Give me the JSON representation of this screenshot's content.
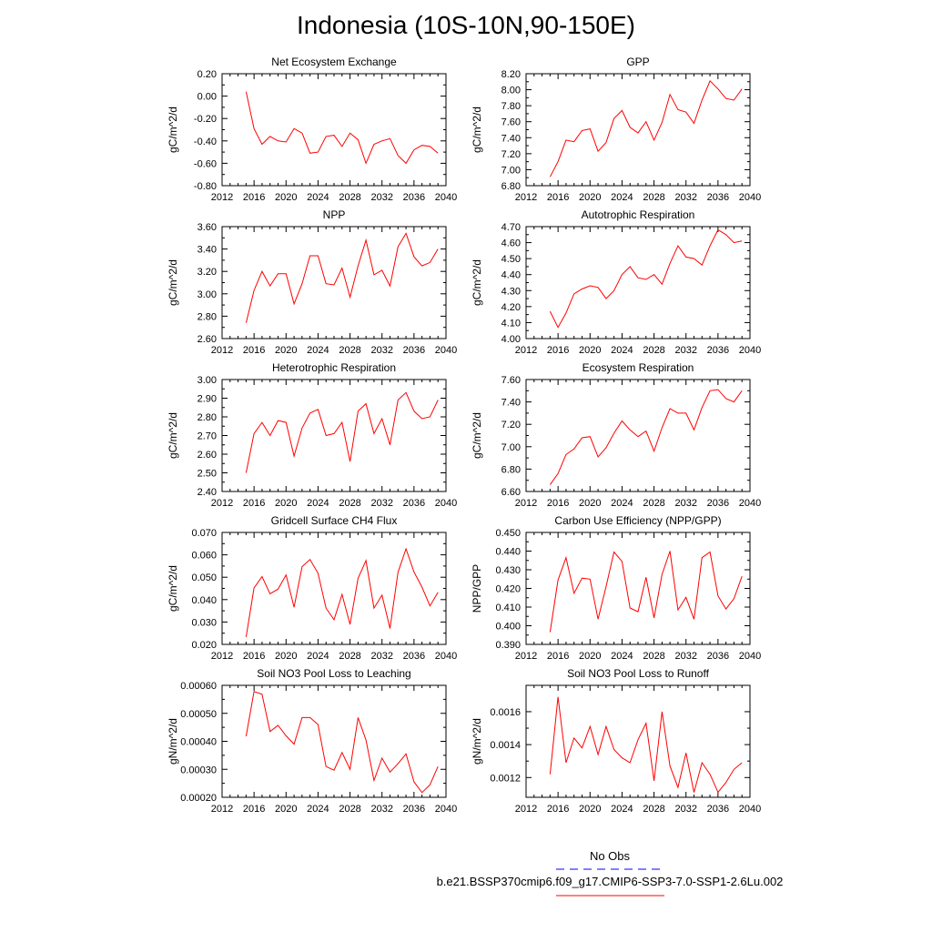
{
  "page_title": "Indonesia (10S-10N,90-150E)",
  "legend": {
    "obs_label": "No Obs",
    "model_label": "b.e21.BSSP370cmip6.f09_g17.CMIP6-SSP3-7.0-SSP1-2.6Lu.002",
    "obs_color": "#0000ff",
    "model_color": "#ff0000"
  },
  "chart_data": [
    {
      "type": "line",
      "title": "Net Ecosystem Exchange",
      "xlabel": "",
      "ylabel": "gC/m^2/d",
      "xlim": [
        2012,
        2040
      ],
      "ylim": [
        -0.8,
        0.2
      ],
      "xticks": [
        "2012",
        "2016",
        "2020",
        "2024",
        "2028",
        "2032",
        "2036",
        "2040"
      ],
      "yticks": [
        "-0.80",
        "-0.60",
        "-0.40",
        "-0.20",
        "0.00",
        "0.20"
      ],
      "x": [
        2015,
        2016,
        2017,
        2018,
        2019,
        2020,
        2021,
        2022,
        2023,
        2024,
        2025,
        2026,
        2027,
        2028,
        2029,
        2030,
        2031,
        2032,
        2033,
        2034,
        2035,
        2036,
        2037,
        2038,
        2039
      ],
      "values": [
        0.04,
        -0.29,
        -0.43,
        -0.36,
        -0.4,
        -0.41,
        -0.29,
        -0.33,
        -0.51,
        -0.5,
        -0.36,
        -0.35,
        -0.45,
        -0.33,
        -0.39,
        -0.6,
        -0.43,
        -0.4,
        -0.38,
        -0.53,
        -0.6,
        -0.48,
        -0.44,
        -0.45,
        -0.51
      ],
      "grid": false
    },
    {
      "type": "line",
      "title": "GPP",
      "xlabel": "",
      "ylabel": "gC/m^2/d",
      "xlim": [
        2012,
        2040
      ],
      "ylim": [
        6.8,
        8.2
      ],
      "xticks": [
        "2012",
        "2016",
        "2020",
        "2024",
        "2028",
        "2032",
        "2036",
        "2040"
      ],
      "yticks": [
        "6.80",
        "7.00",
        "7.20",
        "7.40",
        "7.60",
        "7.80",
        "8.00",
        "8.20"
      ],
      "x": [
        2015,
        2016,
        2017,
        2018,
        2019,
        2020,
        2021,
        2022,
        2023,
        2024,
        2025,
        2026,
        2027,
        2028,
        2029,
        2030,
        2031,
        2032,
        2033,
        2034,
        2035,
        2036,
        2037,
        2038,
        2039
      ],
      "values": [
        6.91,
        7.1,
        7.37,
        7.35,
        7.49,
        7.51,
        7.23,
        7.34,
        7.64,
        7.74,
        7.53,
        7.46,
        7.6,
        7.37,
        7.59,
        7.94,
        7.75,
        7.72,
        7.58,
        7.87,
        8.11,
        8.01,
        7.89,
        7.87,
        8.01
      ],
      "grid": false
    },
    {
      "type": "line",
      "title": "NPP",
      "xlabel": "",
      "ylabel": "gC/m^2/d",
      "xlim": [
        2012,
        2040
      ],
      "ylim": [
        2.6,
        3.6
      ],
      "xticks": [
        "2012",
        "2016",
        "2020",
        "2024",
        "2028",
        "2032",
        "2036",
        "2040"
      ],
      "yticks": [
        "2.60",
        "2.80",
        "3.00",
        "3.20",
        "3.40",
        "3.60"
      ],
      "x": [
        2015,
        2016,
        2017,
        2018,
        2019,
        2020,
        2021,
        2022,
        2023,
        2024,
        2025,
        2026,
        2027,
        2028,
        2029,
        2030,
        2031,
        2032,
        2033,
        2034,
        2035,
        2036,
        2037,
        2038,
        2039
      ],
      "values": [
        2.74,
        3.03,
        3.2,
        3.07,
        3.18,
        3.18,
        2.91,
        3.09,
        3.34,
        3.34,
        3.09,
        3.08,
        3.23,
        2.97,
        3.25,
        3.48,
        3.17,
        3.21,
        3.07,
        3.42,
        3.54,
        3.33,
        3.25,
        3.28,
        3.4
      ],
      "grid": false
    },
    {
      "type": "line",
      "title": "Autotrophic Respiration",
      "xlabel": "",
      "ylabel": "gC/m^2/d",
      "xlim": [
        2012,
        2040
      ],
      "ylim": [
        4.0,
        4.7
      ],
      "xticks": [
        "2012",
        "2016",
        "2020",
        "2024",
        "2028",
        "2032",
        "2036",
        "2040"
      ],
      "yticks": [
        "4.00",
        "4.10",
        "4.20",
        "4.30",
        "4.40",
        "4.50",
        "4.60",
        "4.70"
      ],
      "x": [
        2015,
        2016,
        2017,
        2018,
        2019,
        2020,
        2021,
        2022,
        2023,
        2024,
        2025,
        2026,
        2027,
        2028,
        2029,
        2030,
        2031,
        2032,
        2033,
        2034,
        2035,
        2036,
        2037,
        2038,
        2039
      ],
      "values": [
        4.17,
        4.07,
        4.16,
        4.28,
        4.31,
        4.33,
        4.32,
        4.25,
        4.3,
        4.4,
        4.45,
        4.38,
        4.37,
        4.4,
        4.34,
        4.47,
        4.58,
        4.51,
        4.5,
        4.46,
        4.58,
        4.68,
        4.65,
        4.6,
        4.61
      ],
      "grid": false
    },
    {
      "type": "line",
      "title": "Heterotrophic Respiration",
      "xlabel": "",
      "ylabel": "gC/m^2/d",
      "xlim": [
        2012,
        2040
      ],
      "ylim": [
        2.4,
        3.0
      ],
      "xticks": [
        "2012",
        "2016",
        "2020",
        "2024",
        "2028",
        "2032",
        "2036",
        "2040"
      ],
      "yticks": [
        "2.40",
        "2.50",
        "2.60",
        "2.70",
        "2.80",
        "2.90",
        "3.00"
      ],
      "x": [
        2015,
        2016,
        2017,
        2018,
        2019,
        2020,
        2021,
        2022,
        2023,
        2024,
        2025,
        2026,
        2027,
        2028,
        2029,
        2030,
        2031,
        2032,
        2033,
        2034,
        2035,
        2036,
        2037,
        2038,
        2039
      ],
      "values": [
        2.5,
        2.71,
        2.77,
        2.7,
        2.78,
        2.77,
        2.59,
        2.74,
        2.82,
        2.84,
        2.7,
        2.71,
        2.77,
        2.56,
        2.83,
        2.87,
        2.71,
        2.79,
        2.65,
        2.89,
        2.93,
        2.83,
        2.79,
        2.8,
        2.89
      ],
      "grid": false
    },
    {
      "type": "line",
      "title": "Ecosystem Respiration",
      "xlabel": "",
      "ylabel": "gC/m^2/d",
      "xlim": [
        2012,
        2040
      ],
      "ylim": [
        6.6,
        7.6
      ],
      "xticks": [
        "2012",
        "2016",
        "2020",
        "2024",
        "2028",
        "2032",
        "2036",
        "2040"
      ],
      "yticks": [
        "6.60",
        "6.80",
        "7.00",
        "7.20",
        "7.40",
        "7.60"
      ],
      "x": [
        2015,
        2016,
        2017,
        2018,
        2019,
        2020,
        2021,
        2022,
        2023,
        2024,
        2025,
        2026,
        2027,
        2028,
        2029,
        2030,
        2031,
        2032,
        2033,
        2034,
        2035,
        2036,
        2037,
        2038,
        2039
      ],
      "values": [
        6.66,
        6.76,
        6.93,
        6.98,
        7.08,
        7.09,
        6.91,
        6.99,
        7.12,
        7.23,
        7.15,
        7.09,
        7.14,
        6.96,
        7.17,
        7.34,
        7.3,
        7.3,
        7.15,
        7.35,
        7.5,
        7.51,
        7.43,
        7.4,
        7.5
      ],
      "grid": false
    },
    {
      "type": "line",
      "title": "Gridcell Surface CH4 Flux",
      "xlabel": "",
      "ylabel": "gC/m^2/d",
      "xlim": [
        2012,
        2040
      ],
      "ylim": [
        0.02,
        0.07
      ],
      "xticks": [
        "2012",
        "2016",
        "2020",
        "2024",
        "2028",
        "2032",
        "2036",
        "2040"
      ],
      "yticks": [
        "0.020",
        "0.030",
        "0.040",
        "0.050",
        "0.060",
        "0.070"
      ],
      "x": [
        2015,
        2016,
        2017,
        2018,
        2019,
        2020,
        2021,
        2022,
        2023,
        2024,
        2025,
        2026,
        2027,
        2028,
        2029,
        2030,
        2031,
        2032,
        2033,
        2034,
        2035,
        2036,
        2037,
        2038,
        2039
      ],
      "values": [
        0.0232,
        0.0452,
        0.0503,
        0.0426,
        0.0447,
        0.051,
        0.0366,
        0.0547,
        0.0579,
        0.0518,
        0.0362,
        0.031,
        0.0423,
        0.0289,
        0.0495,
        0.0575,
        0.0362,
        0.042,
        0.0271,
        0.0522,
        0.0627,
        0.0523,
        0.0456,
        0.0372,
        0.0432
      ],
      "grid": false
    },
    {
      "type": "line",
      "title": "Carbon Use Efficiency (NPP/GPP)",
      "xlabel": "",
      "ylabel": "NPP/GPP",
      "xlim": [
        2012,
        2040
      ],
      "ylim": [
        0.39,
        0.45
      ],
      "xticks": [
        "2012",
        "2016",
        "2020",
        "2024",
        "2028",
        "2032",
        "2036",
        "2040"
      ],
      "yticks": [
        "0.390",
        "0.400",
        "0.410",
        "0.420",
        "0.430",
        "0.440",
        "0.450"
      ],
      "x": [
        2015,
        2016,
        2017,
        2018,
        2019,
        2020,
        2021,
        2022,
        2023,
        2024,
        2025,
        2026,
        2027,
        2028,
        2029,
        2030,
        2031,
        2032,
        2033,
        2034,
        2035,
        2036,
        2037,
        2038,
        2039
      ],
      "values": [
        0.3966,
        0.4245,
        0.4365,
        0.4174,
        0.4255,
        0.425,
        0.4035,
        0.421,
        0.4395,
        0.4345,
        0.4095,
        0.4075,
        0.426,
        0.4042,
        0.4275,
        0.44,
        0.4085,
        0.4152,
        0.4035,
        0.4365,
        0.4395,
        0.416,
        0.409,
        0.4145,
        0.4265
      ],
      "grid": false
    },
    {
      "type": "line",
      "title": "Soil NO3 Pool Loss to Leaching",
      "xlabel": "",
      "ylabel": "gN/m^2/d",
      "xlim": [
        2012,
        2040
      ],
      "ylim": [
        0.0002,
        0.0006
      ],
      "xticks": [
        "2012",
        "2016",
        "2020",
        "2024",
        "2028",
        "2032",
        "2036",
        "2040"
      ],
      "yticks": [
        "0.00020",
        "0.00030",
        "0.00040",
        "0.00050",
        "0.00060"
      ],
      "x": [
        2015,
        2016,
        2017,
        2018,
        2019,
        2020,
        2021,
        2022,
        2023,
        2024,
        2025,
        2026,
        2027,
        2028,
        2029,
        2030,
        2031,
        2032,
        2033,
        2034,
        2035,
        2036,
        2037,
        2038,
        2039
      ],
      "values": [
        0.000418,
        0.000578,
        0.000568,
        0.000435,
        0.000457,
        0.00042,
        0.00039,
        0.000485,
        0.000485,
        0.00046,
        0.00031,
        0.000297,
        0.00036,
        0.0003,
        0.000485,
        0.000405,
        0.00026,
        0.00034,
        0.00029,
        0.00032,
        0.000355,
        0.000255,
        0.000217,
        0.000245,
        0.00031
      ],
      "grid": false
    },
    {
      "type": "line",
      "title": "Soil NO3 Pool Loss to Runoff",
      "xlabel": "",
      "ylabel": "gN/m^2/d",
      "xlim": [
        2012,
        2040
      ],
      "ylim": [
        0.00108,
        0.00176
      ],
      "xticks": [
        "2012",
        "2016",
        "2020",
        "2024",
        "2028",
        "2032",
        "2036",
        "2040"
      ],
      "yticks": [
        "0.0012",
        "0.0014",
        "0.0016"
      ],
      "ytick_values": [
        0.0012,
        0.0014,
        0.0016
      ],
      "x": [
        2015,
        2016,
        2017,
        2018,
        2019,
        2020,
        2021,
        2022,
        2023,
        2024,
        2025,
        2026,
        2027,
        2028,
        2029,
        2030,
        2031,
        2032,
        2033,
        2034,
        2035,
        2036,
        2037,
        2038,
        2039
      ],
      "values": [
        0.00122,
        0.00169,
        0.00129,
        0.00144,
        0.00138,
        0.00151,
        0.00134,
        0.00151,
        0.00137,
        0.00132,
        0.00129,
        0.00143,
        0.00153,
        0.00118,
        0.0016,
        0.00127,
        0.00114,
        0.00135,
        0.00111,
        0.00129,
        0.00122,
        0.00111,
        0.00117,
        0.00125,
        0.00129
      ],
      "grid": false
    }
  ]
}
